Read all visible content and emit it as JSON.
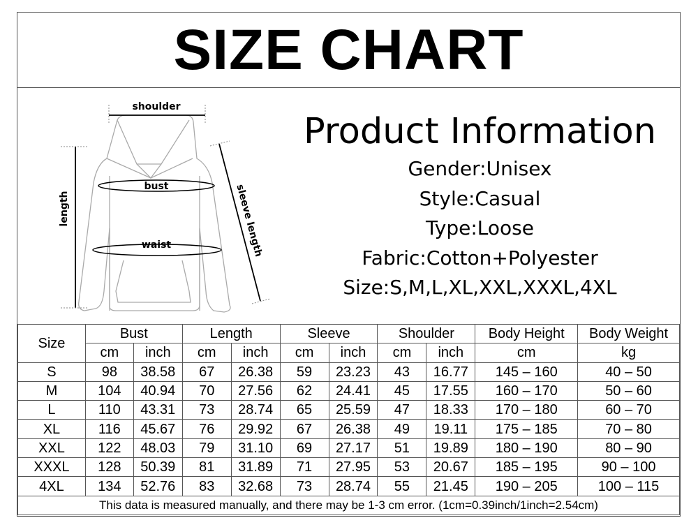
{
  "title": "SIZE CHART",
  "diagram": {
    "shoulder": "shoulder",
    "bust": "bust",
    "waist": "waist",
    "length": "length",
    "sleeve": "sleeve length"
  },
  "product_info": {
    "title": "Product Information",
    "lines": [
      "Gender:Unisex",
      "Style:Casual",
      "Type:Loose",
      "Fabric:Cotton+Polyester",
      "Size:S,M,L,XL,XXL,XXXL,4XL"
    ]
  },
  "table": {
    "size_header": "Size",
    "groups": [
      {
        "label": "Bust",
        "units": [
          "cm",
          "inch"
        ]
      },
      {
        "label": "Length",
        "units": [
          "cm",
          "inch"
        ]
      },
      {
        "label": "Sleeve",
        "units": [
          "cm",
          "inch"
        ]
      },
      {
        "label": "Shoulder",
        "units": [
          "cm",
          "inch"
        ]
      },
      {
        "label": "Body Height",
        "units": [
          "cm"
        ]
      },
      {
        "label": "Body Weight",
        "units": [
          "kg"
        ]
      }
    ],
    "rows": [
      [
        "S",
        "98",
        "38.58",
        "67",
        "26.38",
        "59",
        "23.23",
        "43",
        "16.77",
        "145 – 160",
        "40 – 50"
      ],
      [
        "M",
        "104",
        "40.94",
        "70",
        "27.56",
        "62",
        "24.41",
        "45",
        "17.55",
        "160 – 170",
        "50 – 60"
      ],
      [
        "L",
        "110",
        "43.31",
        "73",
        "28.74",
        "65",
        "25.59",
        "47",
        "18.33",
        "170 – 180",
        "60 – 70"
      ],
      [
        "XL",
        "116",
        "45.67",
        "76",
        "29.92",
        "67",
        "26.38",
        "49",
        "19.11",
        "175 – 185",
        "70 – 80"
      ],
      [
        "XXL",
        "122",
        "48.03",
        "79",
        "31.10",
        "69",
        "27.17",
        "51",
        "19.89",
        "180 – 190",
        "80 – 90"
      ],
      [
        "XXXL",
        "128",
        "50.39",
        "81",
        "31.89",
        "71",
        "27.95",
        "53",
        "20.67",
        "185 – 195",
        "90 – 100"
      ],
      [
        "4XL",
        "134",
        "52.76",
        "83",
        "32.68",
        "73",
        "28.74",
        "55",
        "21.45",
        "190 – 205",
        "100 – 115"
      ]
    ],
    "note": "This data is measured manually, and there may be 1-3 cm error. (1cm=0.39inch/1inch=2.54cm)"
  }
}
